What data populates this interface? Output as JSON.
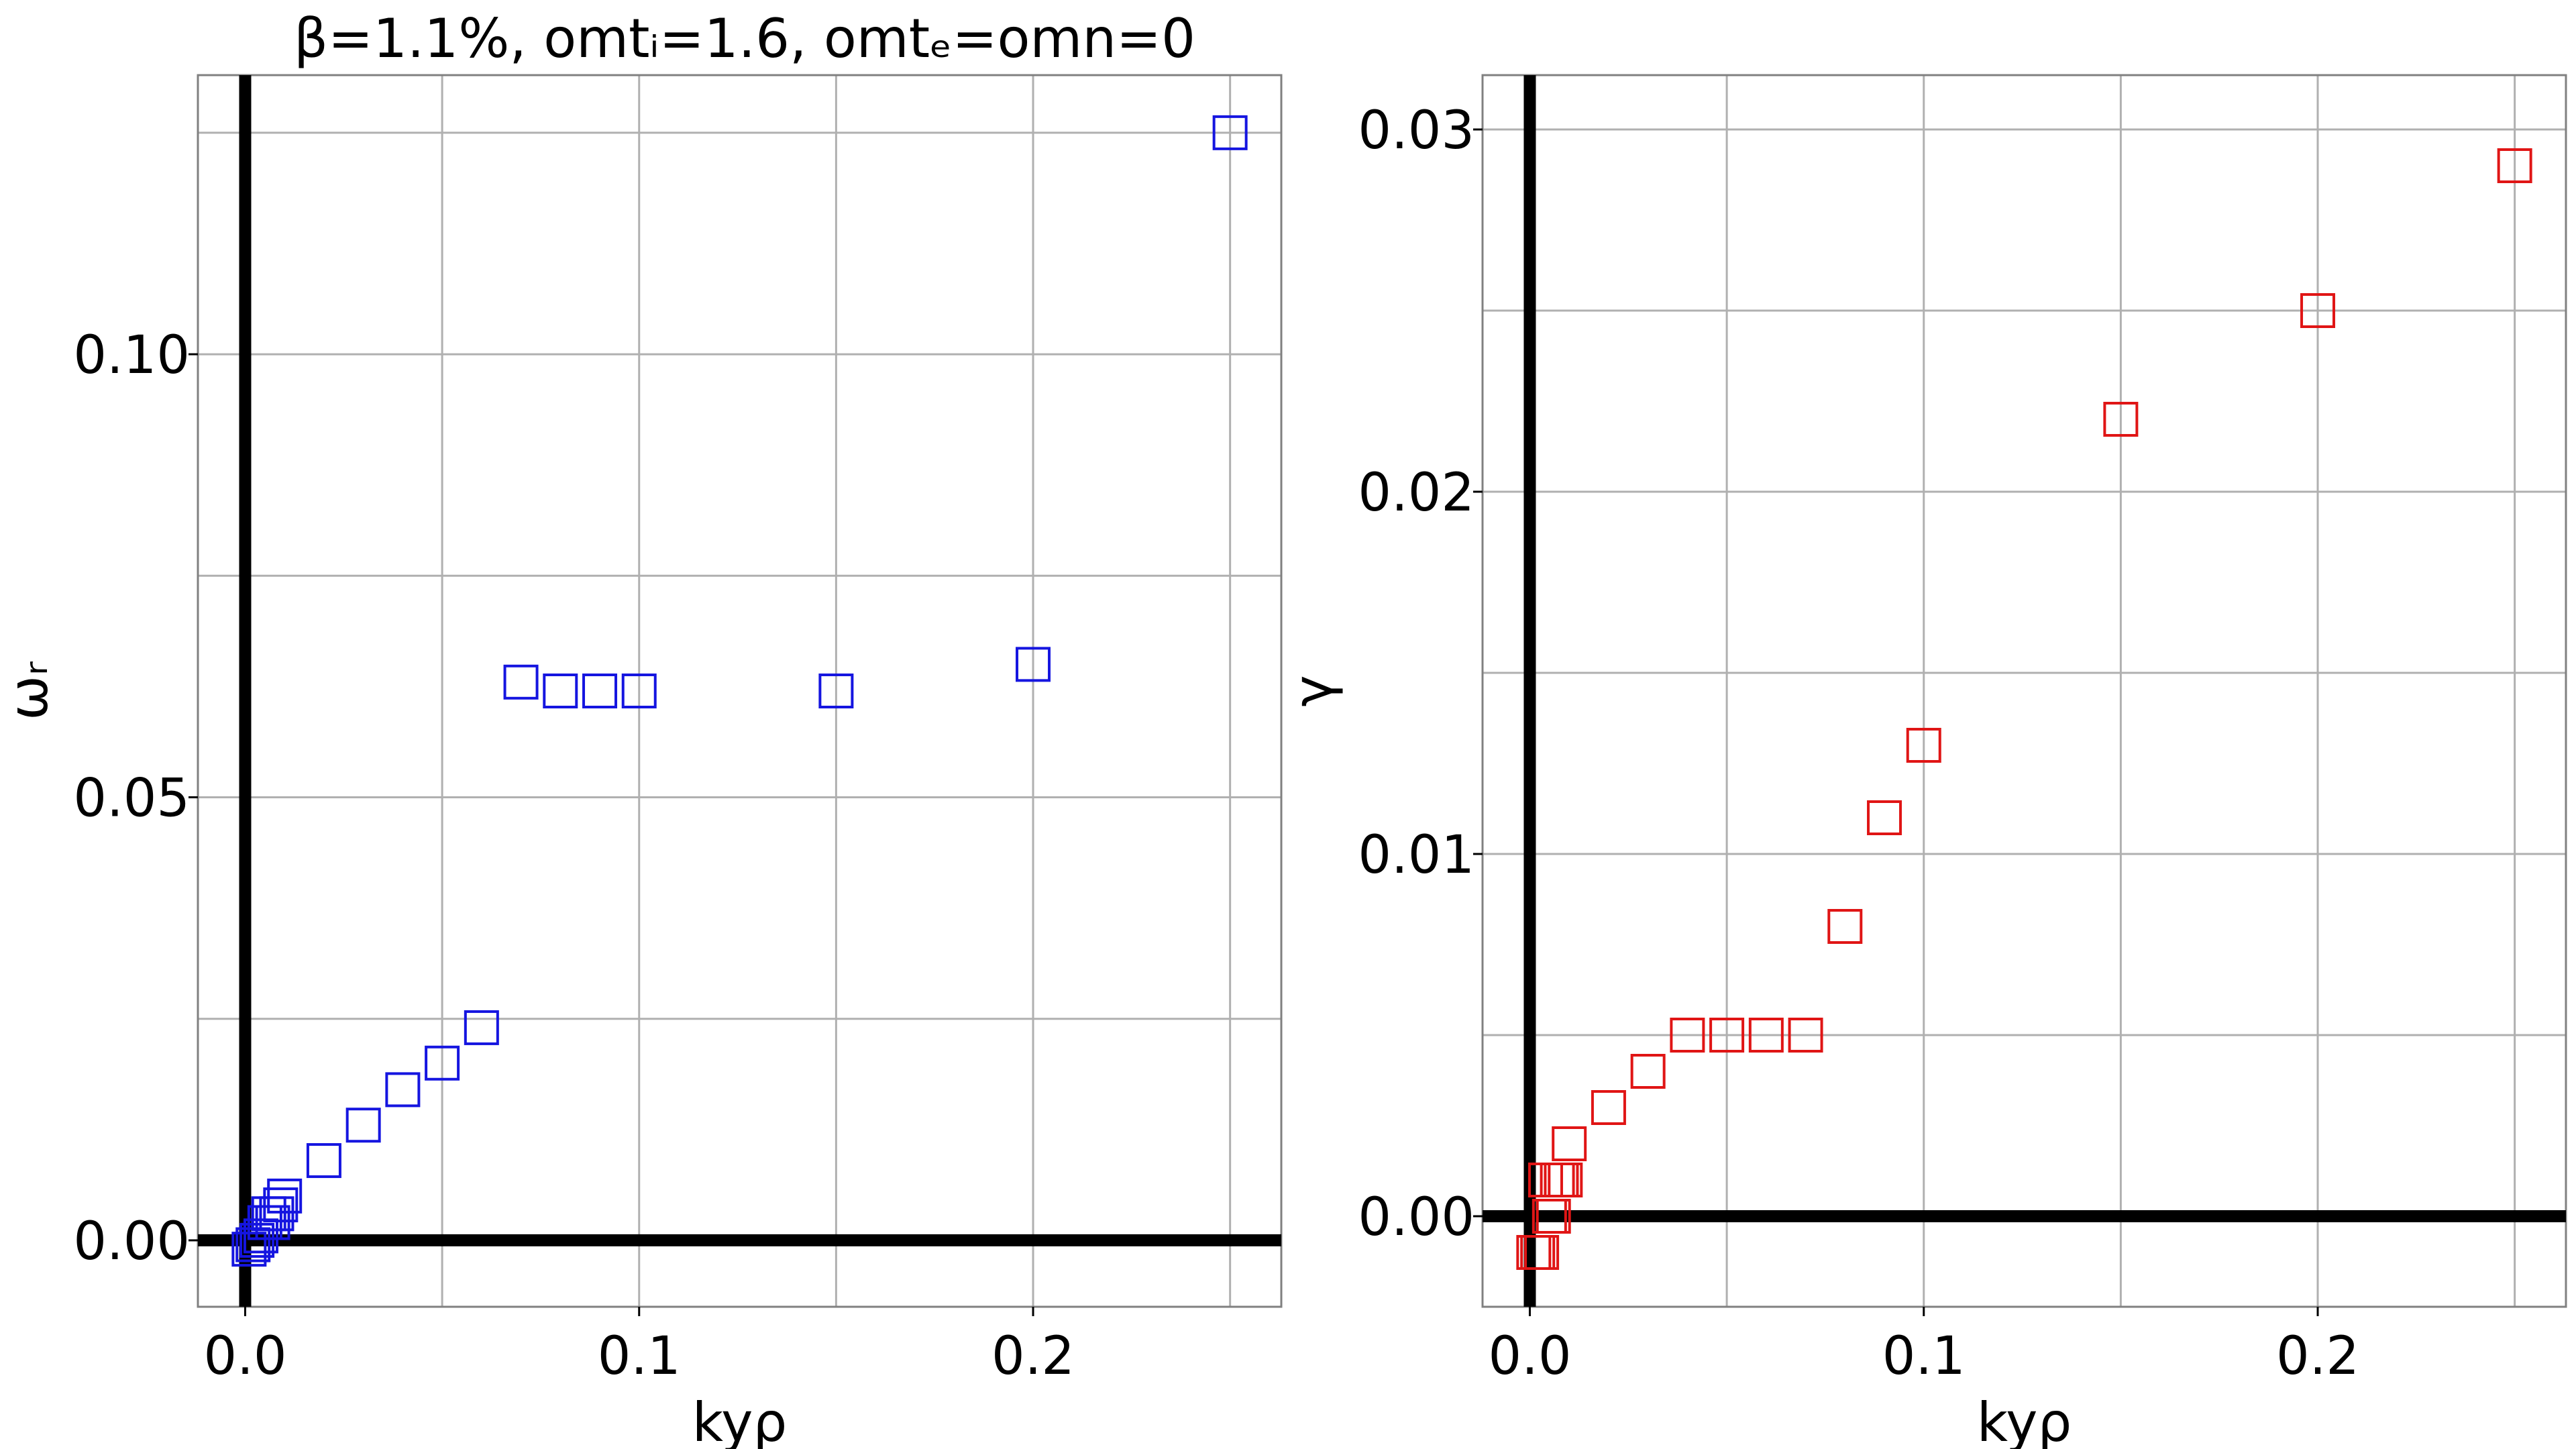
{
  "figure": {
    "title": "β=1.1%, omtᵢ=1.6, omtₑ=omn=0"
  },
  "chart_data": [
    {
      "type": "scatter",
      "title": "β=1.1%, omtᵢ=1.6, omtₑ=omn=0",
      "xlabel": "kyρ",
      "ylabel": "ωᵣ",
      "xlim": [
        -0.012,
        0.263
      ],
      "ylim": [
        -0.0075,
        0.1315
      ],
      "xticks": [
        0.0,
        0.1,
        0.2
      ],
      "xtick_labels": [
        "0.0",
        "0.1",
        "0.2"
      ],
      "yticks": [
        0.0,
        0.05,
        0.1
      ],
      "ytick_labels": [
        "0.00",
        "0.05",
        "0.10"
      ],
      "grid": true,
      "marker": "open-square",
      "series": [
        {
          "color": "#1515e0",
          "x": [
            0.001,
            0.002,
            0.003,
            0.004,
            0.005,
            0.006,
            0.007,
            0.008,
            0.009,
            0.01,
            0.02,
            0.03,
            0.04,
            0.05,
            0.06,
            0.07,
            0.08,
            0.09,
            0.1,
            0.15,
            0.2,
            0.25
          ],
          "y": [
            -0.001,
            -0.0005,
            0.0,
            0.0005,
            0.002,
            0.003,
            0.002,
            0.003,
            0.004,
            0.005,
            0.009,
            0.013,
            0.017,
            0.02,
            0.024,
            0.063,
            0.062,
            0.062,
            0.062,
            0.062,
            0.065,
            0.125
          ]
        }
      ]
    },
    {
      "type": "scatter",
      "xlabel": "kyρ",
      "ylabel": "γ",
      "xlim": [
        -0.012,
        0.263
      ],
      "ylim": [
        -0.0025,
        0.0315
      ],
      "xticks": [
        0.0,
        0.1,
        0.2
      ],
      "xtick_labels": [
        "0.0",
        "0.1",
        "0.2"
      ],
      "yticks": [
        0.0,
        0.01,
        0.02,
        0.03
      ],
      "ytick_labels": [
        "0.00",
        "0.01",
        "0.02",
        "0.03"
      ],
      "grid": true,
      "marker": "open-square",
      "series": [
        {
          "color": "#e01515",
          "x": [
            0.001,
            0.002,
            0.003,
            0.004,
            0.005,
            0.006,
            0.007,
            0.008,
            0.009,
            0.01,
            0.02,
            0.03,
            0.04,
            0.05,
            0.06,
            0.07,
            0.08,
            0.09,
            0.1,
            0.15,
            0.2,
            0.25
          ],
          "y": [
            -0.001,
            -0.001,
            -0.001,
            0.001,
            0.0,
            0.0,
            0.001,
            0.001,
            0.001,
            0.002,
            0.003,
            0.004,
            0.005,
            0.005,
            0.005,
            0.005,
            0.008,
            0.011,
            0.013,
            0.022,
            0.025,
            0.029
          ]
        }
      ]
    }
  ]
}
